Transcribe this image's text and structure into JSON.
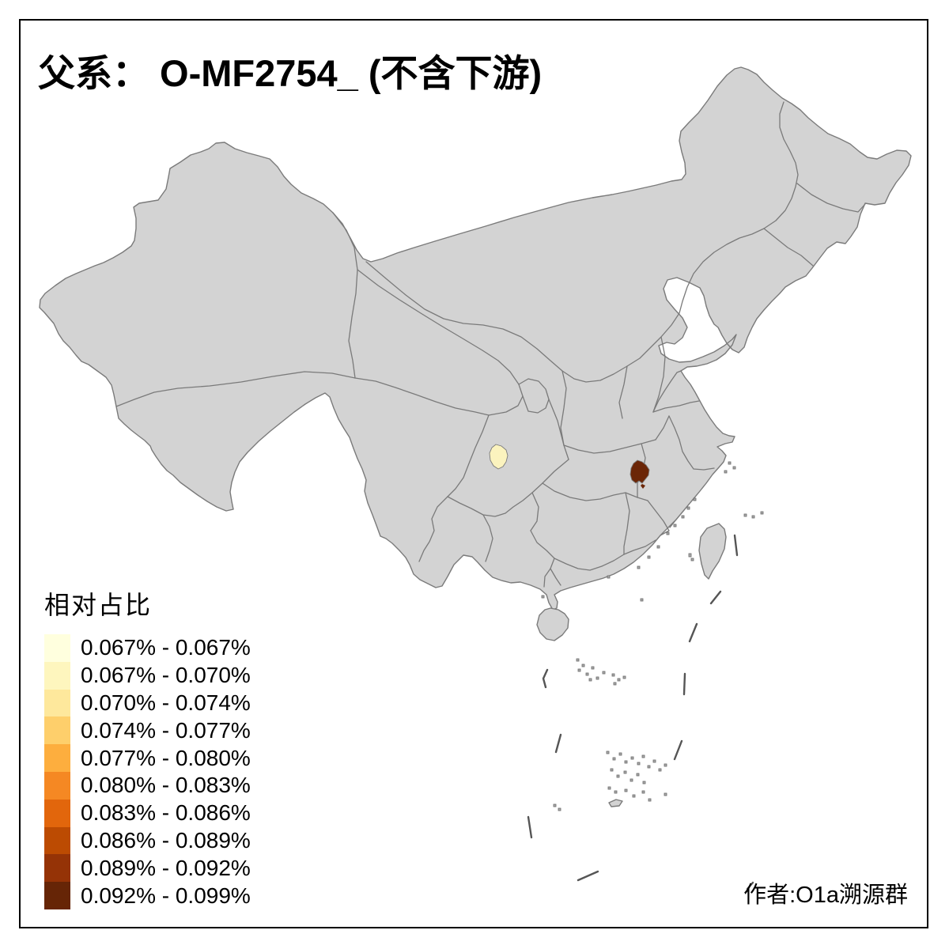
{
  "title": "父系： O-MF2754_ (不含下游)",
  "attribution": "作者:O1a溯源群",
  "legend": {
    "title": "相对占比",
    "items": [
      {
        "range": "0.067% - 0.067%",
        "color": "#FFFFDE"
      },
      {
        "range": "0.067% - 0.070%",
        "color": "#FEF6BE"
      },
      {
        "range": "0.070% - 0.074%",
        "color": "#FEE89C"
      },
      {
        "range": "0.074% - 0.077%",
        "color": "#FECF6B"
      },
      {
        "range": "0.077% - 0.080%",
        "color": "#FDAE3E"
      },
      {
        "range": "0.080% - 0.083%",
        "color": "#F58823"
      },
      {
        "range": "0.083% - 0.086%",
        "color": "#E2660C"
      },
      {
        "range": "0.086% - 0.089%",
        "color": "#BC4B02"
      },
      {
        "range": "0.089% - 0.092%",
        "color": "#953306"
      },
      {
        "range": "0.092% - 0.099%",
        "color": "#662506"
      }
    ]
  },
  "map": {
    "land_color": "#D3D3D3",
    "border_color": "#7A7A7A",
    "frame_color": "#000000",
    "background_color": "#FFFFFF",
    "highlighted_regions": [
      {
        "name": "min-region",
        "value_class": "0.067% - 0.067%",
        "color": "#FBF3BE"
      },
      {
        "name": "max-region",
        "value_class": "0.092% - 0.099%",
        "color": "#6B2607"
      }
    ]
  }
}
